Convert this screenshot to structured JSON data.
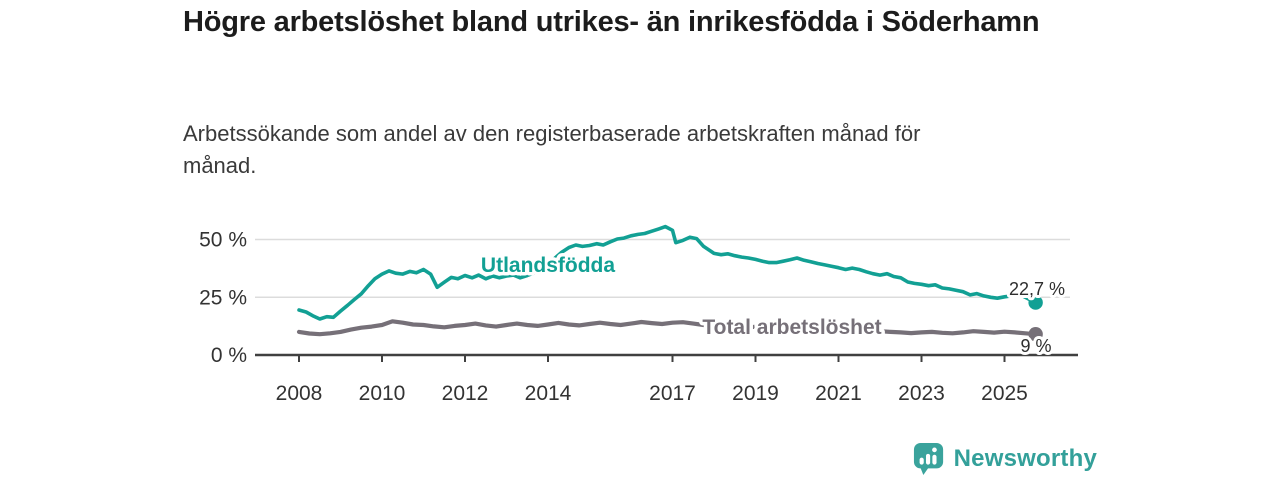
{
  "header": {
    "title": "Högre arbetslöshet bland utrikes- än inrikesfödda i Söderhamn",
    "subtitle": "Arbetssökande som andel av den registerbaserade arbetskraften månad för månad."
  },
  "branding": {
    "logo_text": "Newsworthy",
    "logo_icon": "bar-chart-speech-bubble-icon",
    "logo_color": "#3aa39c"
  },
  "colors": {
    "foreign_born_line": "#12a094",
    "total_line": "#767078",
    "gridline": "#dcdcdc",
    "axis": "#404040",
    "tick_text": "#333333",
    "end_label_text": "#2e2e2e",
    "title_text": "#1c1c1c"
  },
  "chart_data": {
    "type": "line",
    "title": "Högre arbetslöshet bland utrikes- än inrikesfödda i Söderhamn",
    "ylabel": "",
    "xlabel": "",
    "grid": "horizontal",
    "legend_position": "inline-labels",
    "y_axis": {
      "ticks": [
        0,
        25,
        50
      ],
      "tick_labels": [
        "0 %",
        "25 %",
        "50 %"
      ],
      "range": [
        0,
        58
      ],
      "unit": "%"
    },
    "x_axis": {
      "ticks": [
        2008,
        2010,
        2012,
        2014,
        2017,
        2019,
        2021,
        2023,
        2025
      ],
      "tick_labels": [
        "2008",
        "2010",
        "2012",
        "2014",
        "2017",
        "2019",
        "2021",
        "2023",
        "2025"
      ],
      "range": [
        2007.9,
        2026.3
      ]
    },
    "series": [
      {
        "name": "Utlandsfödda",
        "color": "#12a094",
        "end_label": "22,7 %",
        "end_value": 22.7,
        "points": [
          [
            2008.0,
            19.5
          ],
          [
            2008.17,
            18.6
          ],
          [
            2008.33,
            17.0
          ],
          [
            2008.5,
            15.6
          ],
          [
            2008.67,
            16.6
          ],
          [
            2008.83,
            16.3
          ],
          [
            2009.0,
            19.0
          ],
          [
            2009.17,
            21.5
          ],
          [
            2009.33,
            24.0
          ],
          [
            2009.5,
            26.5
          ],
          [
            2009.67,
            30.0
          ],
          [
            2009.83,
            33.0
          ],
          [
            2010.0,
            35.0
          ],
          [
            2010.17,
            36.4
          ],
          [
            2010.33,
            35.4
          ],
          [
            2010.5,
            35.0
          ],
          [
            2010.67,
            36.2
          ],
          [
            2010.83,
            35.6
          ],
          [
            2011.0,
            37.0
          ],
          [
            2011.17,
            35.0
          ],
          [
            2011.33,
            29.3
          ],
          [
            2011.5,
            31.5
          ],
          [
            2011.67,
            33.6
          ],
          [
            2011.83,
            33.0
          ],
          [
            2012.0,
            34.4
          ],
          [
            2012.17,
            33.4
          ],
          [
            2012.33,
            34.6
          ],
          [
            2012.5,
            33.0
          ],
          [
            2012.67,
            34.2
          ],
          [
            2012.83,
            33.4
          ],
          [
            2013.0,
            34.2
          ],
          [
            2013.17,
            34.6
          ],
          [
            2013.33,
            33.4
          ],
          [
            2013.5,
            34.4
          ],
          [
            2013.67,
            35.6
          ],
          [
            2013.83,
            37.0
          ],
          [
            2014.0,
            39.5
          ],
          [
            2014.17,
            42.0
          ],
          [
            2014.33,
            44.5
          ],
          [
            2014.5,
            46.5
          ],
          [
            2014.67,
            47.6
          ],
          [
            2014.83,
            47.0
          ],
          [
            2015.0,
            47.4
          ],
          [
            2015.17,
            48.2
          ],
          [
            2015.33,
            47.6
          ],
          [
            2015.5,
            49.0
          ],
          [
            2015.67,
            50.2
          ],
          [
            2015.83,
            50.6
          ],
          [
            2016.0,
            51.6
          ],
          [
            2016.17,
            52.2
          ],
          [
            2016.33,
            52.6
          ],
          [
            2016.5,
            53.6
          ],
          [
            2016.67,
            54.6
          ],
          [
            2016.83,
            55.6
          ],
          [
            2017.0,
            54.0
          ],
          [
            2017.08,
            48.6
          ],
          [
            2017.25,
            49.6
          ],
          [
            2017.42,
            51.0
          ],
          [
            2017.58,
            50.4
          ],
          [
            2017.75,
            47.0
          ],
          [
            2017.92,
            45.0
          ],
          [
            2018.0,
            44.0
          ],
          [
            2018.17,
            43.4
          ],
          [
            2018.33,
            43.8
          ],
          [
            2018.5,
            43.0
          ],
          [
            2018.67,
            42.4
          ],
          [
            2018.83,
            42.0
          ],
          [
            2019.0,
            41.4
          ],
          [
            2019.17,
            40.6
          ],
          [
            2019.33,
            40.0
          ],
          [
            2019.5,
            40.0
          ],
          [
            2019.67,
            40.6
          ],
          [
            2019.83,
            41.2
          ],
          [
            2020.0,
            42.0
          ],
          [
            2020.17,
            41.0
          ],
          [
            2020.33,
            40.4
          ],
          [
            2020.5,
            39.6
          ],
          [
            2020.67,
            39.0
          ],
          [
            2020.83,
            38.4
          ],
          [
            2021.0,
            37.8
          ],
          [
            2021.17,
            37.0
          ],
          [
            2021.33,
            37.6
          ],
          [
            2021.5,
            37.0
          ],
          [
            2021.67,
            36.0
          ],
          [
            2021.83,
            35.2
          ],
          [
            2022.0,
            34.6
          ],
          [
            2022.17,
            35.2
          ],
          [
            2022.33,
            34.0
          ],
          [
            2022.5,
            33.4
          ],
          [
            2022.67,
            31.6
          ],
          [
            2022.83,
            31.0
          ],
          [
            2023.0,
            30.6
          ],
          [
            2023.17,
            30.0
          ],
          [
            2023.33,
            30.4
          ],
          [
            2023.5,
            29.0
          ],
          [
            2023.67,
            28.6
          ],
          [
            2023.83,
            28.0
          ],
          [
            2024.0,
            27.4
          ],
          [
            2024.17,
            26.0
          ],
          [
            2024.33,
            26.6
          ],
          [
            2024.5,
            25.6
          ],
          [
            2024.67,
            25.0
          ],
          [
            2024.83,
            24.6
          ],
          [
            2025.0,
            25.2
          ],
          [
            2025.17,
            25.6
          ],
          [
            2025.33,
            26.6
          ],
          [
            2025.5,
            25.0
          ],
          [
            2025.75,
            22.7
          ]
        ]
      },
      {
        "name": "Total arbetslöshet",
        "color": "#767078",
        "end_label": "9 %",
        "end_value": 9.0,
        "points": [
          [
            2008.0,
            10.0
          ],
          [
            2008.25,
            9.3
          ],
          [
            2008.5,
            9.0
          ],
          [
            2008.75,
            9.4
          ],
          [
            2009.0,
            10.0
          ],
          [
            2009.25,
            11.0
          ],
          [
            2009.5,
            11.8
          ],
          [
            2009.75,
            12.3
          ],
          [
            2010.0,
            13.0
          ],
          [
            2010.25,
            14.6
          ],
          [
            2010.5,
            14.0
          ],
          [
            2010.75,
            13.2
          ],
          [
            2011.0,
            13.0
          ],
          [
            2011.25,
            12.4
          ],
          [
            2011.5,
            12.0
          ],
          [
            2011.75,
            12.6
          ],
          [
            2012.0,
            13.0
          ],
          [
            2012.25,
            13.6
          ],
          [
            2012.5,
            12.8
          ],
          [
            2012.75,
            12.3
          ],
          [
            2013.0,
            13.0
          ],
          [
            2013.25,
            13.6
          ],
          [
            2013.5,
            13.0
          ],
          [
            2013.75,
            12.6
          ],
          [
            2014.0,
            13.2
          ],
          [
            2014.25,
            13.9
          ],
          [
            2014.5,
            13.2
          ],
          [
            2014.75,
            12.8
          ],
          [
            2015.0,
            13.4
          ],
          [
            2015.25,
            14.0
          ],
          [
            2015.5,
            13.4
          ],
          [
            2015.75,
            13.0
          ],
          [
            2016.0,
            13.6
          ],
          [
            2016.25,
            14.3
          ],
          [
            2016.5,
            13.8
          ],
          [
            2016.75,
            13.4
          ],
          [
            2017.0,
            14.0
          ],
          [
            2017.25,
            14.2
          ],
          [
            2017.5,
            13.6
          ],
          [
            2017.75,
            13.0
          ],
          [
            2018.0,
            13.2
          ],
          [
            2018.25,
            12.8
          ],
          [
            2018.5,
            12.3
          ],
          [
            2018.75,
            12.0
          ],
          [
            2019.0,
            12.2
          ],
          [
            2019.25,
            11.8
          ],
          [
            2019.5,
            11.5
          ],
          [
            2019.75,
            11.7
          ],
          [
            2020.0,
            12.0
          ],
          [
            2020.25,
            12.5
          ],
          [
            2020.5,
            12.0
          ],
          [
            2020.75,
            11.5
          ],
          [
            2021.0,
            11.4
          ],
          [
            2021.25,
            11.0
          ],
          [
            2021.5,
            10.8
          ],
          [
            2021.75,
            10.5
          ],
          [
            2022.0,
            10.3
          ],
          [
            2022.25,
            10.0
          ],
          [
            2022.5,
            9.8
          ],
          [
            2022.75,
            9.5
          ],
          [
            2023.0,
            9.8
          ],
          [
            2023.25,
            10.0
          ],
          [
            2023.5,
            9.6
          ],
          [
            2023.75,
            9.4
          ],
          [
            2024.0,
            9.8
          ],
          [
            2024.25,
            10.3
          ],
          [
            2024.5,
            10.0
          ],
          [
            2024.75,
            9.7
          ],
          [
            2025.0,
            10.1
          ],
          [
            2025.25,
            9.8
          ],
          [
            2025.5,
            9.4
          ],
          [
            2025.75,
            9.0
          ]
        ]
      }
    ]
  }
}
